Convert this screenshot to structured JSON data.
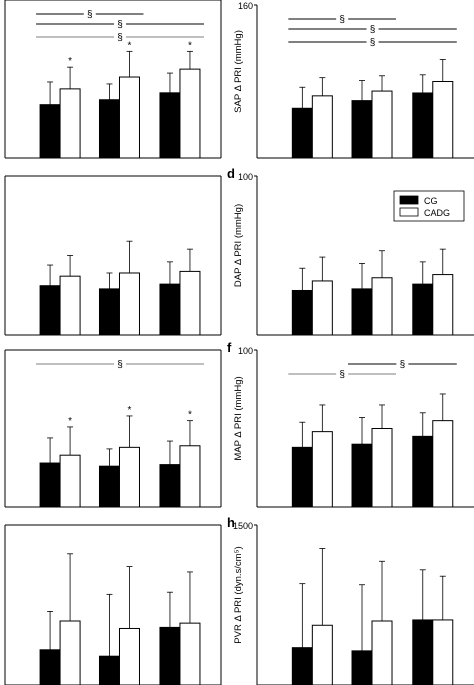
{
  "figure": {
    "series_colors": {
      "CG": "#000000",
      "CADG": "#ffffff"
    },
    "bar_outline": "#000000"
  },
  "chart_data": [
    {
      "type": "bar",
      "panel_label": "",
      "ylabel": "",
      "ylim": [
        0,
        160
      ],
      "yticks": [],
      "categories": [
        "",
        "",
        ""
      ],
      "series": [
        {
          "key": "CG",
          "values": [
            54,
            59,
            66
          ],
          "errors": [
            23,
            16,
            20
          ]
        },
        {
          "key": "CADG",
          "values": [
            70,
            82,
            90
          ],
          "errors": [
            22,
            26,
            18
          ]
        }
      ],
      "stars": [
        true,
        true,
        true
      ],
      "brackets": [
        {
          "row": 0,
          "mark": "§",
          "from": 0,
          "to": 1
        },
        {
          "row": 1,
          "mark": "§",
          "from": 0,
          "to": 2
        },
        {
          "row": 2,
          "mark": "§",
          "from": 0,
          "to": 2,
          "thin": true
        }
      ]
    },
    {
      "type": "bar",
      "panel_label": "",
      "ylabel": "SAP Δ PRI (mmHg)",
      "ylim": [
        0,
        160
      ],
      "yticks": [
        {
          "value": 160,
          "label": "160"
        }
      ],
      "categories": [
        "",
        "",
        ""
      ],
      "series": [
        {
          "key": "CG",
          "values": [
            52,
            60,
            68
          ],
          "errors": [
            22,
            21,
            19
          ]
        },
        {
          "key": "CADG",
          "values": [
            65,
            70,
            80
          ],
          "errors": [
            19,
            16,
            23
          ]
        }
      ],
      "stars": [
        false,
        false,
        false
      ],
      "brackets": [
        {
          "row": 0,
          "mark": "§",
          "from": 0,
          "to": 1
        },
        {
          "row": 1,
          "mark": "§",
          "from": 0,
          "to": 2
        },
        {
          "row": 2,
          "mark": "§",
          "from": 0,
          "to": 2
        }
      ]
    },
    {
      "type": "bar",
      "panel_label": "",
      "ylabel": "",
      "ylim": [
        0,
        100
      ],
      "yticks": [],
      "categories": [
        "",
        "",
        ""
      ],
      "series": [
        {
          "key": "CG",
          "values": [
            31,
            29,
            32
          ],
          "errors": [
            13,
            10,
            14
          ]
        },
        {
          "key": "CADG",
          "values": [
            37,
            39,
            40
          ],
          "errors": [
            13,
            20,
            14
          ]
        }
      ],
      "stars": [
        false,
        false,
        false
      ],
      "brackets": []
    },
    {
      "type": "bar",
      "panel_label": "d",
      "ylabel": "DAP Δ PRI (mmHg)",
      "ylim": [
        0,
        100
      ],
      "yticks": [
        {
          "value": 100,
          "label": "100"
        }
      ],
      "categories": [
        "",
        "",
        ""
      ],
      "series": [
        {
          "key": "CG",
          "values": [
            28,
            29,
            32
          ],
          "errors": [
            14,
            16,
            14
          ]
        },
        {
          "key": "CADG",
          "values": [
            34,
            36,
            38
          ],
          "errors": [
            15,
            17,
            16
          ]
        }
      ],
      "stars": [
        false,
        false,
        false
      ],
      "brackets": [],
      "legend": {
        "position": "top-right",
        "entries": [
          "CG",
          "CADG"
        ]
      }
    },
    {
      "type": "bar",
      "panel_label": "",
      "ylabel": "",
      "ylim": [
        0,
        100
      ],
      "yticks": [],
      "categories": [
        "",
        "",
        ""
      ],
      "series": [
        {
          "key": "CG",
          "values": [
            28,
            26,
            27
          ],
          "errors": [
            16,
            11,
            15
          ]
        },
        {
          "key": "CADG",
          "values": [
            33,
            38,
            39
          ],
          "errors": [
            18,
            20,
            16
          ]
        }
      ],
      "stars": [
        true,
        true,
        true
      ],
      "brackets": [
        {
          "row": 0,
          "mark": "§",
          "from": 0,
          "to": 2,
          "thin": true
        }
      ]
    },
    {
      "type": "bar",
      "panel_label": "f",
      "ylabel": "MAP Δ PRI (mmHg)",
      "ylim": [
        0,
        100
      ],
      "yticks": [
        {
          "value": 100,
          "label": "100"
        }
      ],
      "categories": [
        "",
        "",
        ""
      ],
      "series": [
        {
          "key": "CG",
          "values": [
            38,
            40,
            45
          ],
          "errors": [
            16,
            17,
            15
          ]
        },
        {
          "key": "CADG",
          "values": [
            48,
            50,
            55
          ],
          "errors": [
            17,
            15,
            17
          ]
        }
      ],
      "stars": [
        false,
        false,
        false
      ],
      "brackets": [
        {
          "row": 0,
          "mark": "§",
          "from": 1,
          "to": 2
        },
        {
          "row": 1,
          "mark": "§",
          "from": 0,
          "to": 1,
          "thin": true
        }
      ]
    },
    {
      "type": "bar",
      "panel_label": "",
      "ylabel": "",
      "ylim": [
        0,
        1500
      ],
      "yticks": [],
      "categories": [
        "",
        "",
        ""
      ],
      "series": [
        {
          "key": "CG",
          "values": [
            330,
            270,
            540
          ],
          "errors": [
            360,
            580,
            330
          ]
        },
        {
          "key": "CADG",
          "values": [
            600,
            530,
            580
          ],
          "errors": [
            630,
            580,
            480
          ]
        }
      ],
      "stars": [
        false,
        false,
        false
      ],
      "brackets": []
    },
    {
      "type": "bar",
      "panel_label": "h",
      "ylabel": "PVR Δ PRI (dyn.s/cm⁵)",
      "ylim": [
        0,
        1500
      ],
      "yticks": [
        {
          "value": 1500,
          "label": "1500"
        }
      ],
      "categories": [
        "",
        "",
        ""
      ],
      "series": [
        {
          "key": "CG",
          "values": [
            350,
            320,
            610
          ],
          "errors": [
            600,
            620,
            470
          ]
        },
        {
          "key": "CADG",
          "values": [
            560,
            600,
            610
          ],
          "errors": [
            720,
            560,
            410
          ]
        }
      ],
      "stars": [
        false,
        false,
        false
      ],
      "brackets": []
    }
  ]
}
